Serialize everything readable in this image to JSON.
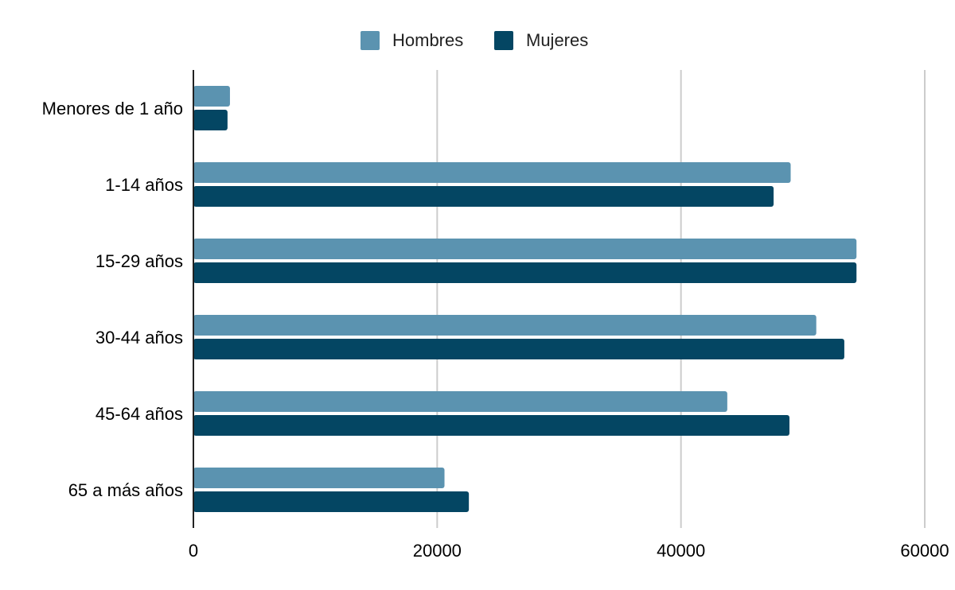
{
  "chart_data": {
    "type": "bar",
    "orientation": "horizontal",
    "categories": [
      "Menores de 1 año",
      "1-14 años",
      "15-29 años",
      "30-44 años",
      "45-64 años",
      "65 a más años"
    ],
    "series": [
      {
        "name": "Hombres",
        "color": "#5b93b0",
        "values": [
          3000,
          49000,
          54400,
          51100,
          43800,
          20600
        ]
      },
      {
        "name": "Mujeres",
        "color": "#044663",
        "values": [
          2800,
          47600,
          54400,
          53400,
          48900,
          22600
        ]
      }
    ],
    "x_ticks": [
      "0",
      "20000",
      "40000",
      "60000"
    ],
    "xlim": [
      0,
      60000
    ],
    "grid": true,
    "legend_position": "top-center",
    "title": "",
    "xlabel": "",
    "ylabel": ""
  }
}
